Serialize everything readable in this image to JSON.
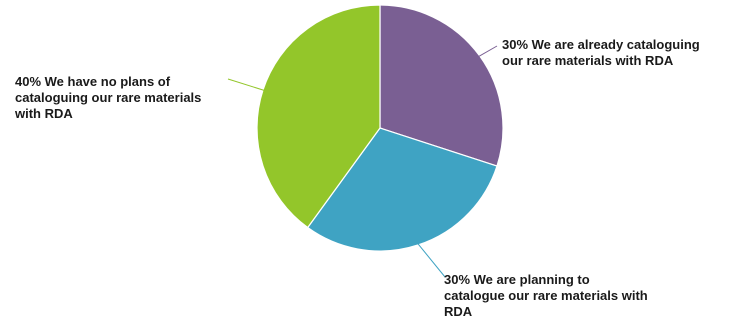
{
  "chart_data": {
    "type": "pie",
    "slices": [
      {
        "label": "30% We are already cataloguing\nour rare materials with RDA",
        "value": 30,
        "color": "#7a5f93"
      },
      {
        "label": "30% We are planning to\ncatalogue our rare materials with\nRDA",
        "value": 30,
        "color": "#3fa3c3"
      },
      {
        "label": "40% We have no plans of\ncataloguing our rare materials\nwith RDA",
        "value": 40,
        "color": "#93c62a"
      }
    ],
    "start_angle_deg": 0,
    "direction": "clockwise",
    "legend": "none"
  }
}
